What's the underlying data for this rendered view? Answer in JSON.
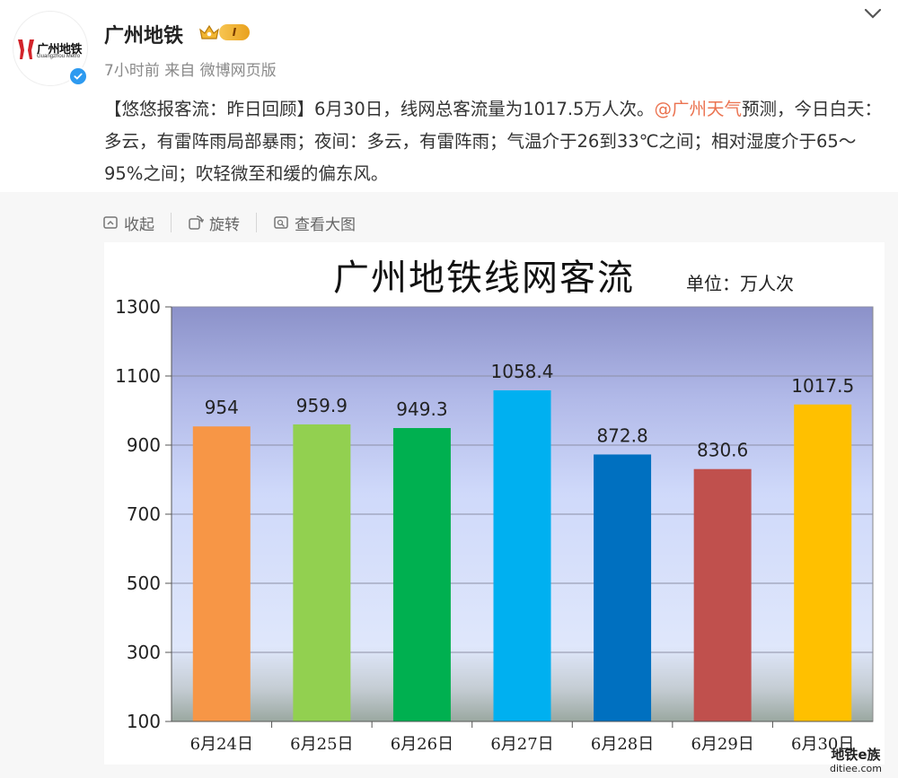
{
  "account": {
    "name": "广州地铁",
    "level_badge": "I",
    "logo_cn": "广州地铁",
    "logo_en": "Guangzhou Metro"
  },
  "meta": {
    "time": "7小时前",
    "source": "来自 微博网页版"
  },
  "post": {
    "text_before": "【悠悠报客流：昨日回顾】6月30日，线网总客流量为1017.5万人次。",
    "mention": "@广州天气",
    "text_after": "预测，今日白天：多云，有雷阵雨局部暴雨；夜间：多云，有雷阵雨；气温介于26到33℃之间；相对湿度介于65～95%之间；吹轻微至和缓的偏东风。"
  },
  "actions": [
    {
      "label": "收起",
      "icon": "collapse-icon"
    },
    {
      "label": "旋转",
      "icon": "rotate-icon"
    },
    {
      "label": "查看大图",
      "icon": "view-large-icon"
    }
  ],
  "chart_data": {
    "type": "bar",
    "title": "广州地铁线网客流",
    "unit_label": "单位：万人次",
    "categories": [
      "6月24日",
      "6月25日",
      "6月26日",
      "6月27日",
      "6月28日",
      "6月29日",
      "6月30日"
    ],
    "values": [
      954,
      959.9,
      949.3,
      1058.4,
      872.8,
      830.6,
      1017.5
    ],
    "value_labels": [
      "954",
      "959.9",
      "949.3",
      "1058.4",
      "872.8",
      "830.6",
      "1017.5"
    ],
    "colors": [
      "#f79646",
      "#92d050",
      "#00b050",
      "#00b0f0",
      "#0070c0",
      "#c0504d",
      "#ffc000"
    ],
    "ylim": [
      100,
      1300
    ],
    "yticks": [
      "1300",
      "1100",
      "900",
      "700",
      "500",
      "300",
      "100"
    ],
    "ytick_values": [
      1300,
      1100,
      900,
      700,
      500,
      300,
      100
    ],
    "grid": true,
    "legend": "none"
  },
  "watermark": {
    "line1": "地铁e族",
    "line2": "ditiee.com"
  }
}
